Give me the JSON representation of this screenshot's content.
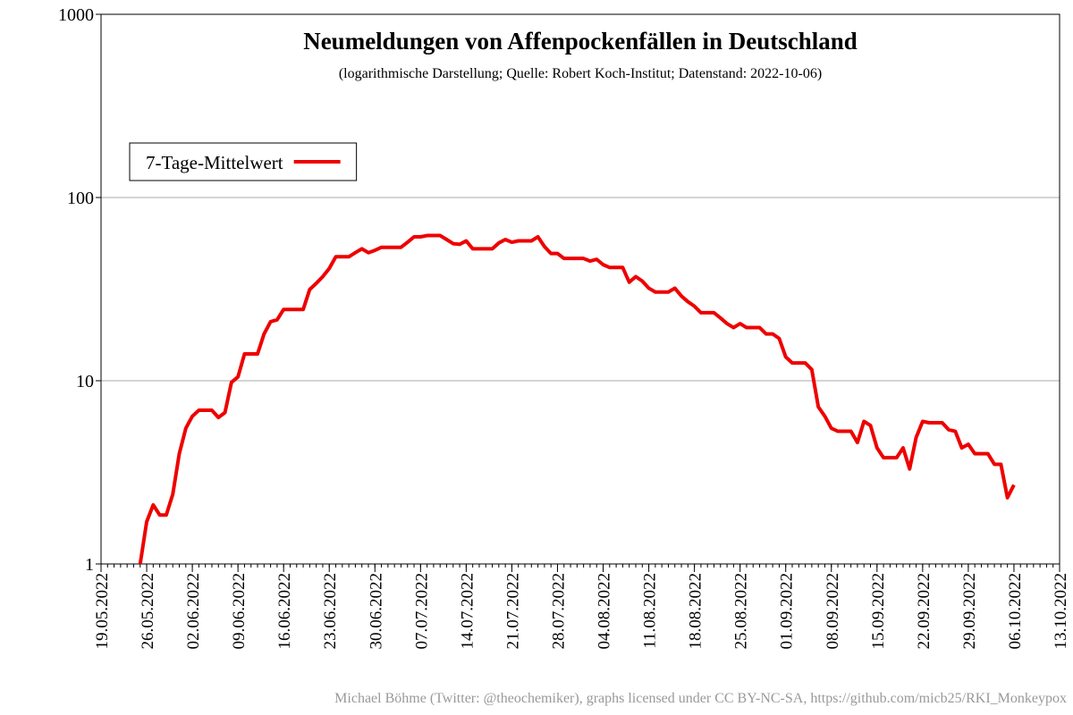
{
  "chart_data": {
    "type": "line",
    "title": "Neumeldungen von Affenpockenfällen in Deutschland",
    "subtitle": "(logarithmische Darstellung; Quelle: Robert Koch-Institut; Datenstand: 2022-10-06)",
    "footer": "Michael Böhme (Twitter: @theochemiker), graphs licensed under CC BY-NC-SA, https://github.com/micb25/RKI_Monkeypox",
    "x": [
      "25.05.2022",
      "26.05.2022",
      "27.05.2022",
      "28.05.2022",
      "29.05.2022",
      "30.05.2022",
      "31.05.2022",
      "01.06.2022",
      "02.06.2022",
      "03.06.2022",
      "04.06.2022",
      "05.06.2022",
      "06.06.2022",
      "07.06.2022",
      "08.06.2022",
      "09.06.2022",
      "10.06.2022",
      "11.06.2022",
      "12.06.2022",
      "13.06.2022",
      "14.06.2022",
      "15.06.2022",
      "16.06.2022",
      "17.06.2022",
      "18.06.2022",
      "19.06.2022",
      "20.06.2022",
      "21.06.2022",
      "22.06.2022",
      "23.06.2022",
      "24.06.2022",
      "25.06.2022",
      "26.06.2022",
      "27.06.2022",
      "28.06.2022",
      "29.06.2022",
      "30.06.2022",
      "01.07.2022",
      "02.07.2022",
      "03.07.2022",
      "04.07.2022",
      "05.07.2022",
      "06.07.2022",
      "07.07.2022",
      "08.07.2022",
      "09.07.2022",
      "10.07.2022",
      "11.07.2022",
      "12.07.2022",
      "13.07.2022",
      "14.07.2022",
      "15.07.2022",
      "16.07.2022",
      "17.07.2022",
      "18.07.2022",
      "19.07.2022",
      "20.07.2022",
      "21.07.2022",
      "22.07.2022",
      "23.07.2022",
      "24.07.2022",
      "25.07.2022",
      "26.07.2022",
      "27.07.2022",
      "28.07.2022",
      "29.07.2022",
      "30.07.2022",
      "31.07.2022",
      "01.08.2022",
      "02.08.2022",
      "03.08.2022",
      "04.08.2022",
      "05.08.2022",
      "06.08.2022",
      "07.08.2022",
      "08.08.2022",
      "09.08.2022",
      "10.08.2022",
      "11.08.2022",
      "12.08.2022",
      "13.08.2022",
      "14.08.2022",
      "15.08.2022",
      "16.08.2022",
      "17.08.2022",
      "18.08.2022",
      "19.08.2022",
      "20.08.2022",
      "21.08.2022",
      "22.08.2022",
      "23.08.2022",
      "24.08.2022",
      "25.08.2022",
      "26.08.2022",
      "27.08.2022",
      "28.08.2022",
      "29.08.2022",
      "30.08.2022",
      "31.08.2022",
      "01.09.2022",
      "02.09.2022",
      "03.09.2022",
      "04.09.2022",
      "05.09.2022",
      "06.09.2022",
      "07.09.2022",
      "08.09.2022",
      "09.09.2022",
      "10.09.2022",
      "11.09.2022",
      "12.09.2022",
      "13.09.2022",
      "14.09.2022",
      "15.09.2022",
      "16.09.2022",
      "17.09.2022",
      "18.09.2022",
      "19.09.2022",
      "20.09.2022",
      "21.09.2022",
      "22.09.2022",
      "23.09.2022",
      "24.09.2022",
      "25.09.2022",
      "26.09.2022",
      "27.09.2022",
      "28.09.2022",
      "29.09.2022",
      "30.09.2022",
      "01.10.2022",
      "02.10.2022",
      "03.10.2022",
      "04.10.2022",
      "05.10.2022",
      "06.10.2022"
    ],
    "series": [
      {
        "name": "7-Tage-Mittelwert",
        "color": "#ee0000",
        "values": [
          1,
          1.7,
          2.1,
          1.85,
          1.85,
          2.4,
          4,
          5.5,
          6.4,
          6.9,
          6.9,
          6.9,
          6.3,
          6.7,
          9.8,
          10.5,
          14,
          14,
          14,
          18,
          21,
          21.5,
          24.5,
          24.5,
          24.5,
          24.5,
          31.5,
          34,
          37,
          41,
          47.5,
          47.5,
          47.5,
          50,
          52.5,
          50,
          51.5,
          53.5,
          53.5,
          53.5,
          53.5,
          57,
          61,
          61,
          62,
          62,
          62,
          59,
          56,
          55.5,
          58,
          52.5,
          52.5,
          52.5,
          52.5,
          56.5,
          59,
          57,
          58,
          58,
          58,
          61,
          54,
          49.5,
          49.5,
          46.5,
          46.5,
          46.5,
          46.5,
          45,
          46,
          43,
          41.5,
          41.5,
          41.5,
          34.5,
          37,
          35,
          32,
          30.5,
          30.5,
          30.5,
          32,
          29,
          27,
          25.5,
          23.5,
          23.5,
          23.5,
          22,
          20.5,
          19.5,
          20.5,
          19.5,
          19.5,
          19.5,
          18,
          18,
          17,
          13.5,
          12.5,
          12.5,
          12.5,
          11.5,
          7.2,
          6.4,
          5.5,
          5.3,
          5.3,
          5.3,
          4.6,
          6,
          5.7,
          4.3,
          3.8,
          3.8,
          3.8,
          4.3,
          3.3,
          4.9,
          6,
          5.9,
          5.9,
          5.9,
          5.4,
          5.3,
          4.3,
          4.5,
          4,
          4,
          4,
          3.5,
          3.5,
          2.3,
          2.7
        ]
      }
    ],
    "xlim": [
      "19.05.2022",
      "13.10.2022"
    ],
    "xticks": [
      "19.05.2022",
      "26.05.2022",
      "02.06.2022",
      "09.06.2022",
      "16.06.2022",
      "23.06.2022",
      "30.06.2022",
      "07.07.2022",
      "14.07.2022",
      "21.07.2022",
      "28.07.2022",
      "04.08.2022",
      "11.08.2022",
      "18.08.2022",
      "25.08.2022",
      "01.09.2022",
      "08.09.2022",
      "15.09.2022",
      "22.09.2022",
      "29.09.2022",
      "06.10.2022",
      "13.10.2022"
    ],
    "ylim": [
      1,
      1000
    ],
    "yticks": [
      1,
      10,
      100,
      1000
    ],
    "log_y": true,
    "grid": true,
    "legend": "upper left"
  }
}
